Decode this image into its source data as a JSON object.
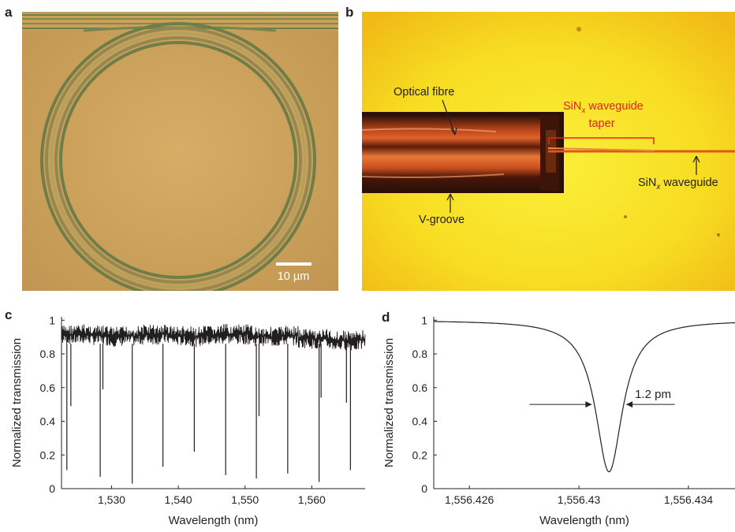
{
  "panels": {
    "a": {
      "letter": "a",
      "scale_bar_label": "10 µm"
    },
    "b": {
      "letter": "b",
      "label_fibre": "Optical fibre",
      "label_taper_line1": "SiN",
      "label_taper_sub": "x",
      "label_taper_rest": " waveguide",
      "label_taper_line2": "taper",
      "label_wg": "SiN",
      "label_wg_sub": "x",
      "label_wg_rest": " waveguide",
      "label_vgroove": "V-groove"
    },
    "c": {
      "letter": "c"
    },
    "d": {
      "letter": "d",
      "fwhm_label": "1.2 pm"
    }
  },
  "colors": {
    "ring_photo_bg": "#cfa55f",
    "ring_line": "#6f7e48",
    "fibre_photo_bg": "#f7dd22",
    "taper_annotation": "#e1251b",
    "waveguide_line": "#e0561e",
    "fibre_dark": "#2b1007",
    "fibre_glow": "#e0622a"
  },
  "chart_data": [
    {
      "type": "line",
      "panel": "c",
      "xlabel": "Wavelength (nm)",
      "ylabel": "Normalized transmission",
      "xlim": [
        1522.5,
        1568
      ],
      "ylim": [
        0,
        1.02
      ],
      "xticks": [
        1530,
        1540,
        1550,
        1560
      ],
      "xtick_labels": [
        "1,530",
        "1,540",
        "1,550",
        "1,560"
      ],
      "yticks": [
        0,
        0.2,
        0.4,
        0.6,
        0.8,
        1
      ],
      "ytick_labels": [
        "0",
        "0.2",
        "0.4",
        "0.6",
        "0.8",
        "1"
      ],
      "baseline_range": [
        0.84,
        0.98
      ],
      "resonance_dips": [
        {
          "x": 1523.3,
          "y": 0.11
        },
        {
          "x": 1523.9,
          "y": 0.49
        },
        {
          "x": 1528.3,
          "y": 0.07
        },
        {
          "x": 1528.7,
          "y": 0.59
        },
        {
          "x": 1533.1,
          "y": 0.03
        },
        {
          "x": 1537.7,
          "y": 0.13
        },
        {
          "x": 1542.4,
          "y": 0.22
        },
        {
          "x": 1547.1,
          "y": 0.08
        },
        {
          "x": 1551.7,
          "y": 0.06
        },
        {
          "x": 1552.1,
          "y": 0.43
        },
        {
          "x": 1556.4,
          "y": 0.09
        },
        {
          "x": 1561.1,
          "y": 0.04
        },
        {
          "x": 1561.4,
          "y": 0.54
        },
        {
          "x": 1565.8,
          "y": 0.11
        },
        {
          "x": 1565.2,
          "y": 0.51
        }
      ]
    },
    {
      "type": "line",
      "panel": "d",
      "xlabel": "Wavelength (nm)",
      "ylabel": "Normalized transmission",
      "xlim": [
        1556.4247,
        1556.4357
      ],
      "ylim": [
        0,
        1.02
      ],
      "xticks": [
        1556.426,
        1556.43,
        1556.434
      ],
      "xtick_labels": [
        "1,556.426",
        "1,556.43",
        "1,556.434"
      ],
      "yticks": [
        0,
        0.2,
        0.4,
        0.6,
        0.8,
        1
      ],
      "ytick_labels": [
        "0",
        "0.2",
        "0.4",
        "0.6",
        "0.8",
        "1"
      ],
      "lorentzian": {
        "center": 1556.4311,
        "fwhm": 0.0012,
        "min": 0.1,
        "max": 1.0
      },
      "fwhm_marker_y": 0.5
    }
  ]
}
